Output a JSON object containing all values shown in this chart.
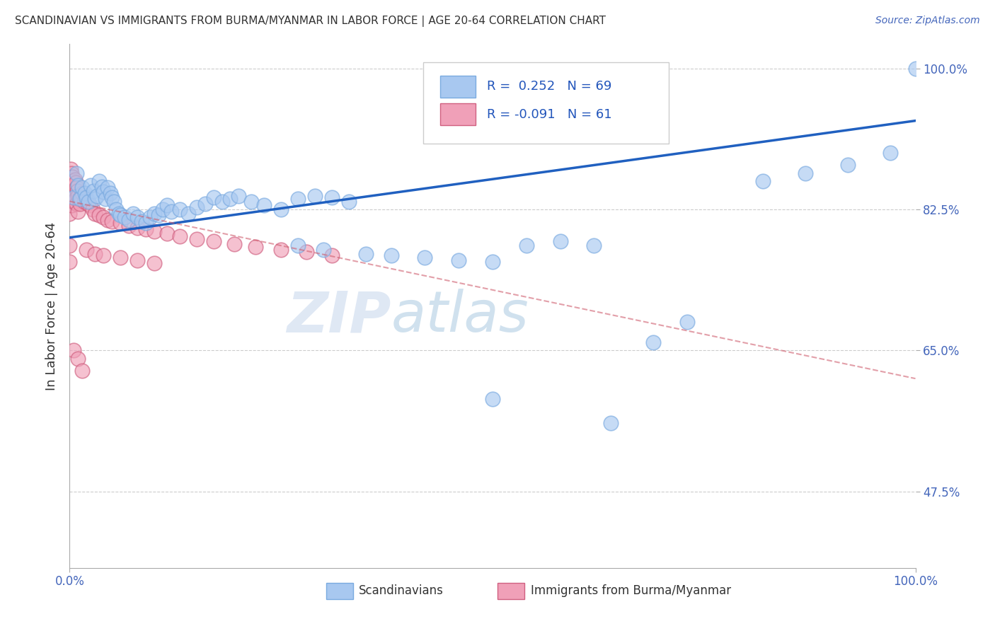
{
  "title": "SCANDINAVIAN VS IMMIGRANTS FROM BURMA/MYANMAR IN LABOR FORCE | AGE 20-64 CORRELATION CHART",
  "source": "Source: ZipAtlas.com",
  "ylabel": "In Labor Force | Age 20-64",
  "R_blue": 0.252,
  "N_blue": 69,
  "R_pink": -0.091,
  "N_pink": 61,
  "blue_color": "#a8c8f0",
  "blue_edge_color": "#7aaae0",
  "pink_color": "#f0a0b8",
  "pink_edge_color": "#d06080",
  "blue_line_color": "#2060c0",
  "pink_line_color": "#d06070",
  "legend_label_blue": "Scandinavians",
  "legend_label_pink": "Immigrants from Burma/Myanmar",
  "watermark": "ZIPatlas",
  "ytick_vals": [
    1.0,
    0.825,
    0.65,
    0.475
  ],
  "ytick_labels": [
    "100.0%",
    "82.5%",
    "65.0%",
    "47.5%"
  ],
  "xlim": [
    0.0,
    1.0
  ],
  "ylim": [
    0.38,
    1.03
  ],
  "blue_x": [
    0.005,
    0.008,
    0.01,
    0.012,
    0.015,
    0.018,
    0.02,
    0.022,
    0.025,
    0.028,
    0.03,
    0.032,
    0.035,
    0.038,
    0.04,
    0.042,
    0.045,
    0.048,
    0.05,
    0.052,
    0.055,
    0.058,
    0.06,
    0.065,
    0.07,
    0.075,
    0.08,
    0.085,
    0.09,
    0.095,
    0.1,
    0.105,
    0.11,
    0.115,
    0.12,
    0.13,
    0.14,
    0.15,
    0.16,
    0.17,
    0.18,
    0.19,
    0.2,
    0.215,
    0.23,
    0.25,
    0.27,
    0.29,
    0.31,
    0.33,
    0.27,
    0.3,
    0.35,
    0.38,
    0.42,
    0.46,
    0.5,
    0.54,
    0.58,
    0.62,
    0.5,
    0.64,
    0.69,
    0.73,
    0.82,
    0.87,
    0.92,
    0.97,
    1.0
  ],
  "blue_y": [
    0.84,
    0.87,
    0.855,
    0.838,
    0.852,
    0.845,
    0.84,
    0.835,
    0.855,
    0.848,
    0.838,
    0.842,
    0.86,
    0.853,
    0.847,
    0.838,
    0.852,
    0.845,
    0.84,
    0.835,
    0.825,
    0.82,
    0.818,
    0.815,
    0.812,
    0.82,
    0.815,
    0.81,
    0.808,
    0.815,
    0.82,
    0.818,
    0.825,
    0.83,
    0.822,
    0.825,
    0.82,
    0.828,
    0.832,
    0.84,
    0.835,
    0.838,
    0.842,
    0.835,
    0.83,
    0.825,
    0.838,
    0.842,
    0.84,
    0.835,
    0.78,
    0.775,
    0.77,
    0.768,
    0.765,
    0.762,
    0.76,
    0.78,
    0.785,
    0.78,
    0.59,
    0.56,
    0.66,
    0.685,
    0.86,
    0.87,
    0.88,
    0.895,
    1.0
  ],
  "pink_x": [
    0.0,
    0.0,
    0.001,
    0.001,
    0.002,
    0.002,
    0.002,
    0.003,
    0.003,
    0.004,
    0.004,
    0.005,
    0.005,
    0.006,
    0.006,
    0.007,
    0.007,
    0.008,
    0.008,
    0.009,
    0.01,
    0.01,
    0.011,
    0.012,
    0.013,
    0.015,
    0.017,
    0.019,
    0.021,
    0.024,
    0.027,
    0.03,
    0.035,
    0.04,
    0.045,
    0.05,
    0.06,
    0.07,
    0.08,
    0.09,
    0.1,
    0.115,
    0.13,
    0.15,
    0.17,
    0.195,
    0.22,
    0.25,
    0.28,
    0.31,
    0.02,
    0.03,
    0.04,
    0.06,
    0.08,
    0.1,
    0.0,
    0.0,
    0.005,
    0.01,
    0.015
  ],
  "pink_y": [
    0.86,
    0.82,
    0.875,
    0.845,
    0.87,
    0.85,
    0.83,
    0.865,
    0.848,
    0.86,
    0.84,
    0.855,
    0.835,
    0.862,
    0.842,
    0.858,
    0.838,
    0.852,
    0.832,
    0.848,
    0.842,
    0.822,
    0.838,
    0.832,
    0.84,
    0.845,
    0.835,
    0.838,
    0.832,
    0.83,
    0.825,
    0.82,
    0.818,
    0.815,
    0.812,
    0.81,
    0.808,
    0.805,
    0.802,
    0.8,
    0.798,
    0.795,
    0.792,
    0.788,
    0.785,
    0.782,
    0.778,
    0.775,
    0.772,
    0.768,
    0.775,
    0.77,
    0.768,
    0.765,
    0.762,
    0.758,
    0.78,
    0.76,
    0.65,
    0.64,
    0.625
  ]
}
